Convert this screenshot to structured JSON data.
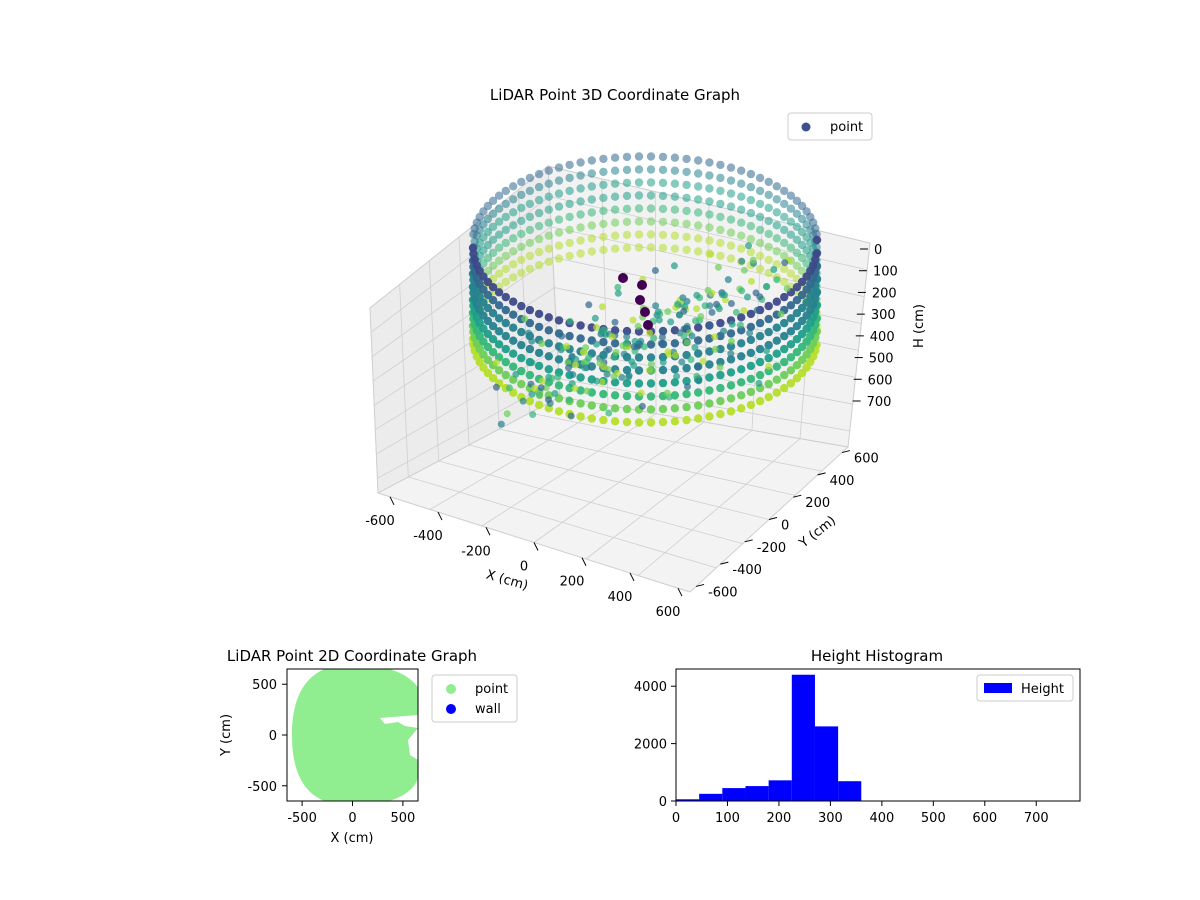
{
  "chart_data": [
    {
      "type": "scatter",
      "projection": "3d",
      "title": "LiDAR Point 3D Coordinate Graph",
      "xlabel": "X (cm)",
      "ylabel": "Y (cm)",
      "zlabel": "H (cm)",
      "xticks": [
        -600,
        -400,
        -200,
        0,
        200,
        400,
        600
      ],
      "yticks": [
        -600,
        -400,
        -200,
        0,
        200,
        400,
        600
      ],
      "zticks": [
        0,
        100,
        200,
        300,
        400,
        500,
        600,
        700
      ],
      "xlim": [
        -650,
        650
      ],
      "ylim": [
        -650,
        650
      ],
      "zlim": [
        760,
        0
      ],
      "z_inverted": true,
      "colormap": "viridis",
      "legend": {
        "entries": [
          {
            "name": "point",
            "color": "#3b528b"
          }
        ],
        "placement": "top-right"
      },
      "series": [
        {
          "name": "point",
          "description_points": "ring of points around radius ~650 cm, heights 0-400 cm"
        }
      ],
      "grid": true
    },
    {
      "type": "scatter",
      "title": "LiDAR Point 2D Coordinate Graph",
      "xlabel": "X (cm)",
      "ylabel": "Y (cm)",
      "xticks": [
        -500,
        0,
        500
      ],
      "yticks": [
        -500,
        0,
        500
      ],
      "xlim": [
        -650,
        650
      ],
      "ylim": [
        -650,
        650
      ],
      "legend": {
        "entries": [
          {
            "name": "point",
            "color": "#90ee90"
          },
          {
            "name": "wall",
            "color": "#0000ff"
          }
        ],
        "placement": "outside-right"
      },
      "series": [
        {
          "name": "point",
          "color": "#90ee90"
        },
        {
          "name": "wall",
          "color": "#0000ff"
        }
      ]
    },
    {
      "type": "bar",
      "title": "Height Histogram",
      "xticks": [
        0,
        100,
        200,
        300,
        400,
        500,
        600,
        700
      ],
      "yticks": [
        0,
        2000,
        4000
      ],
      "xlim": [
        0,
        785
      ],
      "ylim": [
        0,
        4600
      ],
      "legend": {
        "entries": [
          {
            "name": "Height",
            "color": "#0000ff"
          }
        ],
        "placement": "top-right"
      },
      "series": [
        {
          "name": "Height",
          "color": "#0000ff"
        }
      ],
      "bins": [
        {
          "x0": 0,
          "x1": 45,
          "value": 60
        },
        {
          "x0": 45,
          "x1": 90,
          "value": 250
        },
        {
          "x0": 90,
          "x1": 135,
          "value": 450
        },
        {
          "x0": 135,
          "x1": 180,
          "value": 520
        },
        {
          "x0": 180,
          "x1": 225,
          "value": 720
        },
        {
          "x0": 225,
          "x1": 270,
          "value": 4400
        },
        {
          "x0": 270,
          "x1": 315,
          "value": 2600
        },
        {
          "x0": 315,
          "x1": 360,
          "value": 690
        }
      ]
    }
  ]
}
